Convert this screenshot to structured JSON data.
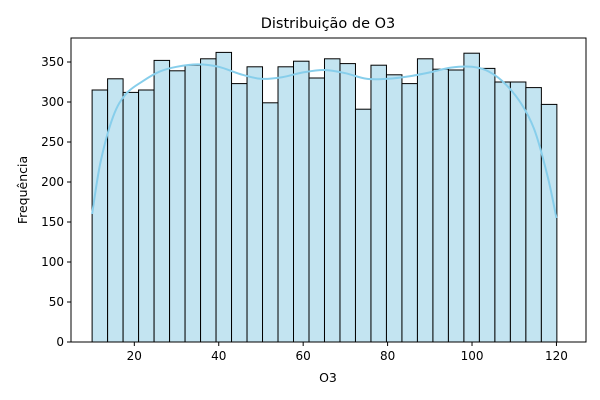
{
  "chart_data": {
    "type": "bar",
    "title": "Distribuição de O3",
    "xlabel": "O3",
    "ylabel": "Frequência",
    "xlim": [
      5,
      127
    ],
    "ylim": [
      0,
      380
    ],
    "xticks": [
      20,
      40,
      60,
      80,
      100,
      120
    ],
    "yticks": [
      0,
      50,
      100,
      150,
      200,
      250,
      300,
      350
    ],
    "bin_start": 10,
    "bin_width": 3.67,
    "values": [
      315,
      329,
      312,
      315,
      352,
      339,
      346,
      354,
      362,
      323,
      344,
      299,
      344,
      351,
      330,
      354,
      348,
      291,
      346,
      334,
      323,
      354,
      341,
      340,
      361,
      342,
      325,
      325,
      318,
      297
    ],
    "kde": {
      "x": [
        10,
        12,
        15,
        18,
        22,
        26,
        30,
        35,
        40,
        45,
        50,
        55,
        60,
        65,
        70,
        75,
        80,
        85,
        90,
        95,
        100,
        104,
        108,
        112,
        115,
        118,
        120
      ],
      "y": [
        160,
        225,
        282,
        310,
        326,
        338,
        344,
        347,
        344,
        335,
        329,
        331,
        337,
        340,
        336,
        329,
        329,
        332,
        337,
        343,
        344,
        338,
        322,
        295,
        262,
        205,
        155
      ]
    },
    "colors": {
      "bar_fill": "#c3e4f1",
      "bar_edge": "#000000",
      "kde_line": "#87ceeb"
    },
    "grid": false,
    "legend": false
  }
}
